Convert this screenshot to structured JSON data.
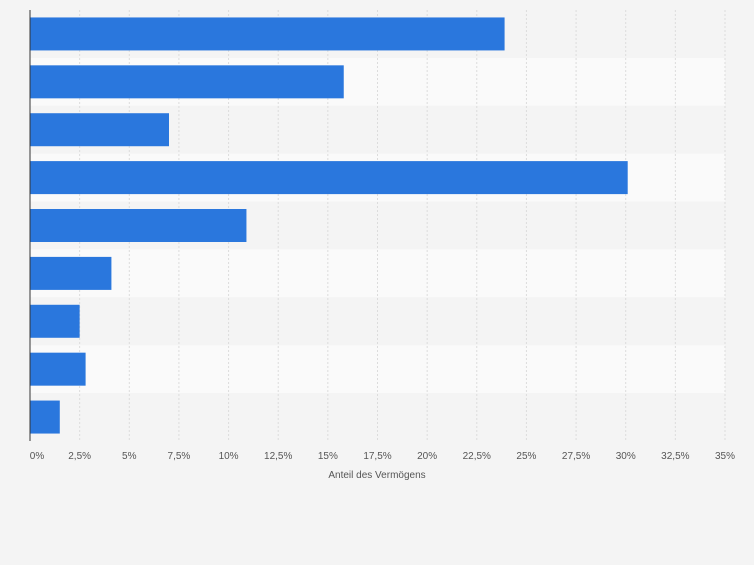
{
  "chart_data": {
    "type": "bar",
    "orientation": "horizontal",
    "categories": [
      "",
      "",
      "",
      "",
      "",
      "",
      "",
      "",
      ""
    ],
    "values": [
      23.9,
      15.8,
      7.0,
      30.1,
      10.9,
      4.1,
      2.5,
      2.8,
      1.5
    ],
    "xlabel": "Anteil des Vermögens",
    "ylabel": "",
    "xlim": [
      0,
      35
    ],
    "xticks": [
      0,
      2.5,
      5,
      7.5,
      10,
      12.5,
      15,
      17.5,
      20,
      22.5,
      25,
      27.5,
      30,
      32.5,
      35
    ],
    "xtick_labels": [
      "0%",
      "2,5%",
      "5%",
      "7,5%",
      "10%",
      "12,5%",
      "15%",
      "17,5%",
      "20%",
      "22,5%",
      "25%",
      "27,5%",
      "30%",
      "32,5%",
      "35%"
    ],
    "grid": true,
    "legend": "none",
    "bar_color": "#2a77dd",
    "band_colors": [
      "#f4f4f4",
      "#fafafa"
    ]
  }
}
